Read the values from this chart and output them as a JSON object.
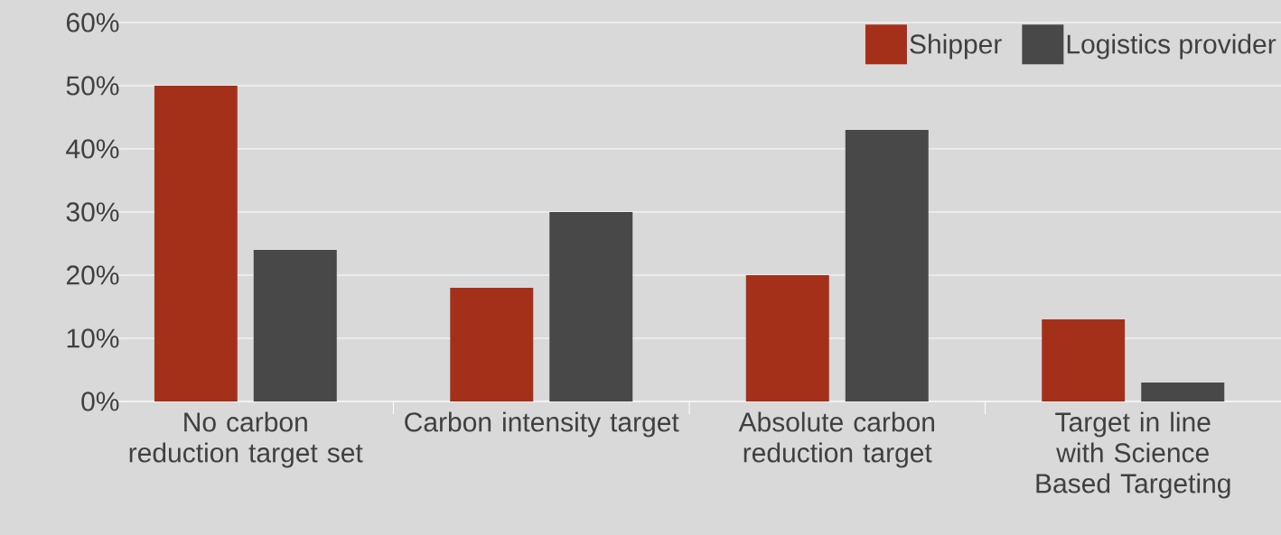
{
  "chart_data": {
    "type": "bar",
    "categories": [
      "No carbon reduction target set",
      "Carbon intensity target",
      "Absolute carbon reduction target",
      "Target in line with Science Based Targeting"
    ],
    "series": [
      {
        "name": "Shipper",
        "color": "#a5301a",
        "values": [
          50,
          18,
          20,
          13
        ]
      },
      {
        "name": "Logistics provider",
        "color": "#484848",
        "values": [
          24,
          30,
          43,
          3
        ]
      }
    ],
    "ylim": [
      0,
      60
    ],
    "yticks": [
      {
        "value": 0,
        "label": "0%"
      },
      {
        "value": 10,
        "label": "10%"
      },
      {
        "value": 20,
        "label": "20%"
      },
      {
        "value": 30,
        "label": "30%"
      },
      {
        "value": 40,
        "label": "40%"
      },
      {
        "value": 50,
        "label": "50%"
      },
      {
        "value": 60,
        "label": "60%"
      }
    ],
    "grid": "y",
    "legend": "top right"
  }
}
